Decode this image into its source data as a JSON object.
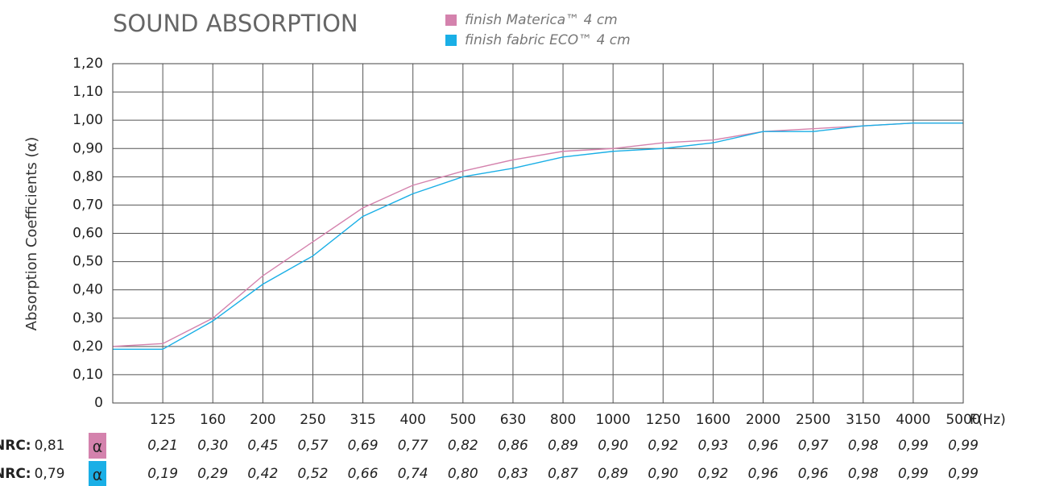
{
  "chart_data": {
    "type": "line",
    "title": "SOUND ABSORPTION",
    "y_label": "Absorption Coefficients (α)",
    "x_label": "F(Hz)",
    "categories": [
      null,
      "125",
      "160",
      "200",
      "250",
      "315",
      "400",
      "500",
      "630",
      "800",
      "1000",
      "1250",
      "1600",
      "2000",
      "2500",
      "3150",
      "4000",
      "5000"
    ],
    "series": [
      {
        "name": "finish Materica™ 4 cm",
        "color": "#d482ad",
        "values": [
          0.2,
          0.21,
          0.3,
          0.45,
          0.57,
          0.69,
          0.77,
          0.82,
          0.86,
          0.89,
          0.9,
          0.92,
          0.93,
          0.96,
          0.97,
          0.98,
          0.99,
          0.99
        ],
        "value_labels": [
          null,
          "0,21",
          "0,30",
          "0,45",
          "0,57",
          "0,69",
          "0,77",
          "0,82",
          "0,86",
          "0,89",
          "0,90",
          "0,92",
          "0,93",
          "0,96",
          "0,97",
          "0,98",
          "0,99",
          "0,99"
        ],
        "nrc": "0,81"
      },
      {
        "name": "finish fabric ECO™ 4 cm",
        "color": "#1aafe6",
        "values": [
          0.19,
          0.19,
          0.29,
          0.42,
          0.52,
          0.66,
          0.74,
          0.8,
          0.83,
          0.87,
          0.89,
          0.9,
          0.92,
          0.96,
          0.96,
          0.98,
          0.99,
          0.99
        ],
        "value_labels": [
          null,
          "0,19",
          "0,29",
          "0,42",
          "0,52",
          "0,66",
          "0,74",
          "0,80",
          "0,83",
          "0,87",
          "0,89",
          "0,90",
          "0,92",
          "0,96",
          "0,96",
          "0,98",
          "0,99",
          "0,99"
        ],
        "nrc": "0,79"
      }
    ],
    "nrc_label": "NRC:",
    "alpha_symbol": "α",
    "ylim": [
      0,
      1.2
    ],
    "yticks": [
      0,
      {
        "value": 0.1,
        "label": "0,10"
      },
      {
        "value": 0.2,
        "label": "0,20"
      },
      {
        "value": 0.3,
        "label": "0,30"
      },
      {
        "value": 0.4,
        "label": "0,40"
      },
      {
        "value": 0.5,
        "label": "0,50"
      },
      {
        "value": 0.6,
        "label": "0,60"
      },
      {
        "value": 0.7,
        "label": "0,70"
      },
      {
        "value": 0.8,
        "label": "0,80"
      },
      {
        "value": 0.9,
        "label": "0,90"
      },
      {
        "value": 1.0,
        "label": "1,00"
      },
      {
        "value": 1.1,
        "label": "1,10"
      },
      {
        "value": 1.2,
        "label": "1,20"
      }
    ],
    "grid": true
  }
}
